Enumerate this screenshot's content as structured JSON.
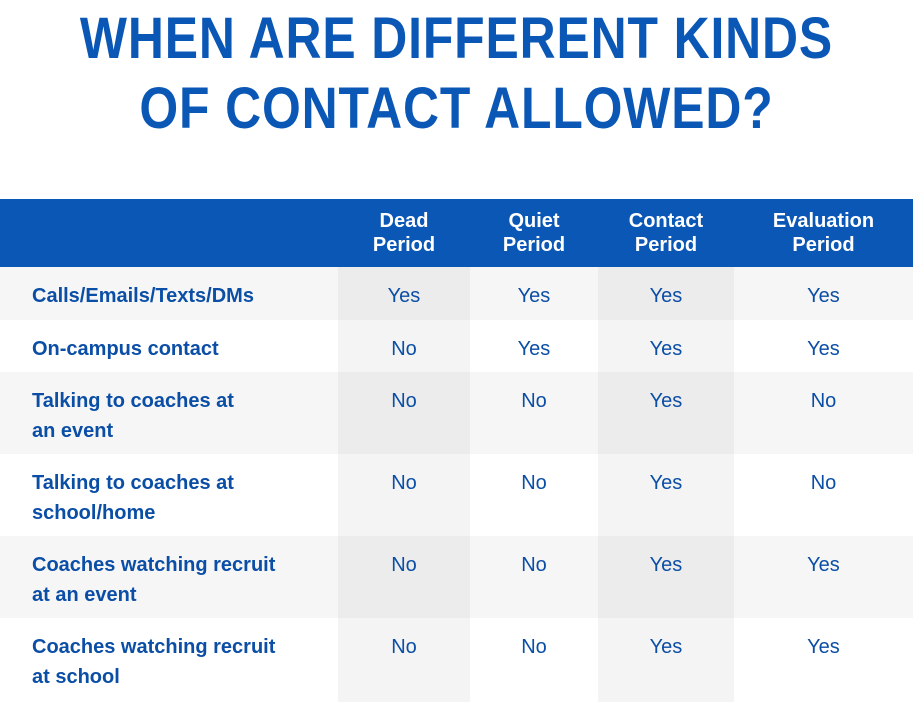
{
  "title": {
    "line1": "WHEN ARE DIFFERENT KINDS",
    "line2": "OF CONTACT ALLOWED?"
  },
  "table": {
    "columns": [
      {
        "line1": "Dead",
        "line2": "Period"
      },
      {
        "line1": "Quiet",
        "line2": "Period"
      },
      {
        "line1": "Contact",
        "line2": "Period"
      },
      {
        "line1": "Evaluation",
        "line2": "Period"
      }
    ],
    "rows": [
      {
        "label1": "Calls/Emails/Texts/DMs",
        "label2": "",
        "values": [
          "Yes",
          "Yes",
          "Yes",
          "Yes"
        ]
      },
      {
        "label1": "On-campus contact",
        "label2": "",
        "values": [
          "No",
          "Yes",
          "Yes",
          "Yes"
        ]
      },
      {
        "label1": "Talking to coaches at",
        "label2": "an event",
        "values": [
          "No",
          "No",
          "Yes",
          "No"
        ]
      },
      {
        "label1": "Talking to coaches at",
        "label2": "school/home",
        "values": [
          "No",
          "No",
          "Yes",
          "No"
        ]
      },
      {
        "label1": "Coaches watching recruit",
        "label2": "at an event",
        "values": [
          "No",
          "No",
          "Yes",
          "Yes"
        ]
      },
      {
        "label1": "Coaches watching recruit",
        "label2": "at school",
        "values": [
          "No",
          "No",
          "Yes",
          "Yes"
        ]
      }
    ]
  },
  "colors": {
    "brand_blue": "#0b57b6",
    "text_blue": "#0b4ea6"
  }
}
